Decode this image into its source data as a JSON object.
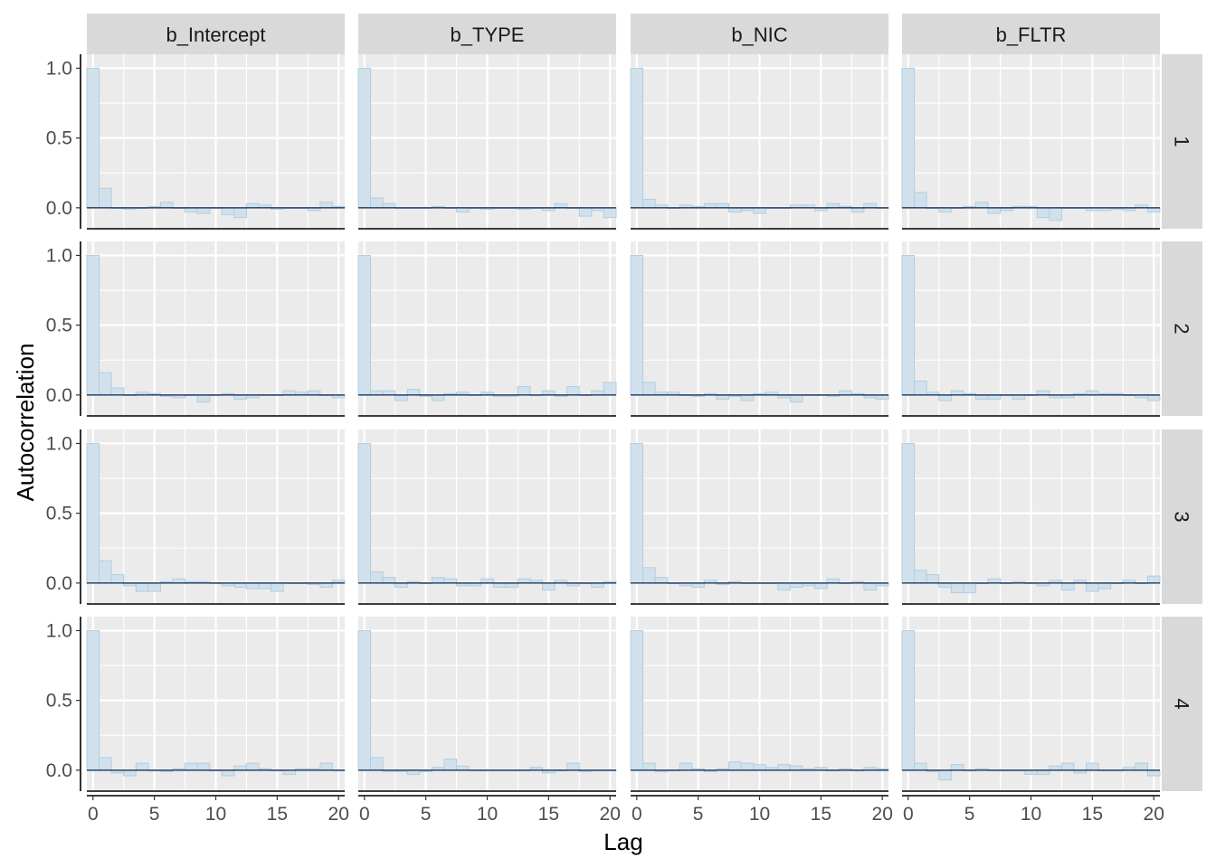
{
  "chart_data": {
    "type": "bar",
    "subtype": "faceted-autocorrelation",
    "xlabel": "Lag",
    "ylabel": "Autocorrelation",
    "xlim": [
      0,
      20
    ],
    "ylim": [
      -0.15,
      1.1
    ],
    "x_ticks": [
      0,
      5,
      10,
      15,
      20
    ],
    "y_ticks": [
      0.0,
      0.5,
      1.0
    ],
    "y_tick_labels": [
      "0.0",
      "0.5",
      "1.0"
    ],
    "grid": true,
    "lags": [
      0,
      1,
      2,
      3,
      4,
      5,
      6,
      7,
      8,
      9,
      10,
      11,
      12,
      13,
      14,
      15,
      16,
      17,
      18,
      19,
      20
    ],
    "columns": [
      "b_Intercept",
      "b_TYPE",
      "b_NIC",
      "b_FLTR"
    ],
    "rows": [
      "1",
      "2",
      "3",
      "4"
    ],
    "colors": {
      "bar_fill": "#d1e1ec",
      "bar_stroke": "#b3cde0",
      "zero_line": "#011f4b",
      "panel_bg": "#ebebeb",
      "grid": "#ffffff",
      "strip_bg": "#d9d9d9",
      "axis_line": "#000000"
    },
    "panels": [
      {
        "row": "1",
        "col": "b_Intercept",
        "values": [
          1.0,
          0.14,
          0.0,
          -0.01,
          0.0,
          0.01,
          0.04,
          0.0,
          -0.03,
          -0.04,
          0.0,
          -0.05,
          -0.07,
          0.03,
          0.02,
          -0.01,
          0.0,
          0.0,
          -0.02,
          0.04,
          0.01
        ]
      },
      {
        "row": "2",
        "col": "b_Intercept",
        "values": [
          1.0,
          0.16,
          0.05,
          0.0,
          0.02,
          0.01,
          -0.01,
          -0.02,
          0.0,
          -0.05,
          0.0,
          0.01,
          -0.03,
          -0.02,
          0.0,
          0.0,
          0.03,
          0.02,
          0.03,
          0.0,
          -0.02
        ]
      },
      {
        "row": "3",
        "col": "b_Intercept",
        "values": [
          1.0,
          0.16,
          0.06,
          -0.02,
          -0.06,
          -0.06,
          0.01,
          0.03,
          0.01,
          0.01,
          0.0,
          -0.02,
          -0.03,
          -0.04,
          -0.04,
          -0.06,
          0.0,
          0.0,
          -0.01,
          -0.03,
          0.02
        ]
      },
      {
        "row": "4",
        "col": "b_Intercept",
        "values": [
          1.0,
          0.09,
          -0.02,
          -0.04,
          0.05,
          0.0,
          -0.01,
          0.01,
          0.05,
          0.05,
          0.0,
          -0.04,
          0.03,
          0.05,
          0.01,
          0.0,
          -0.03,
          0.01,
          0.01,
          0.05,
          0.0
        ]
      },
      {
        "row": "1",
        "col": "b_TYPE",
        "values": [
          1.0,
          0.07,
          0.03,
          0.0,
          0.0,
          0.0,
          0.01,
          0.0,
          -0.03,
          0.0,
          -0.01,
          0.0,
          0.0,
          -0.01,
          0.0,
          -0.02,
          0.03,
          0.0,
          -0.06,
          -0.02,
          -0.07
        ]
      },
      {
        "row": "2",
        "col": "b_TYPE",
        "values": [
          1.0,
          0.03,
          0.03,
          -0.04,
          0.04,
          -0.01,
          -0.04,
          0.01,
          0.02,
          0.0,
          0.02,
          -0.01,
          -0.01,
          0.06,
          0.0,
          0.03,
          -0.01,
          0.06,
          0.0,
          0.03,
          0.09
        ]
      },
      {
        "row": "3",
        "col": "b_TYPE",
        "values": [
          1.0,
          0.08,
          0.04,
          -0.03,
          0.01,
          0.0,
          0.04,
          0.03,
          -0.02,
          -0.02,
          0.03,
          -0.03,
          -0.03,
          0.03,
          0.02,
          -0.05,
          0.02,
          -0.02,
          0.0,
          -0.03,
          0.01
        ]
      },
      {
        "row": "4",
        "col": "b_TYPE",
        "values": [
          1.0,
          0.09,
          -0.01,
          -0.01,
          -0.03,
          -0.01,
          0.02,
          0.08,
          0.03,
          0.0,
          0.0,
          0.0,
          0.0,
          0.0,
          0.02,
          -0.02,
          0.0,
          0.05,
          -0.01,
          0.0,
          0.0
        ]
      },
      {
        "row": "1",
        "col": "b_NIC",
        "values": [
          1.0,
          0.06,
          0.02,
          0.0,
          0.02,
          0.01,
          0.03,
          0.03,
          -0.03,
          -0.02,
          -0.04,
          0.0,
          0.0,
          0.02,
          0.02,
          -0.02,
          0.03,
          0.01,
          -0.03,
          0.03,
          0.0
        ]
      },
      {
        "row": "2",
        "col": "b_NIC",
        "values": [
          1.0,
          0.09,
          0.02,
          0.02,
          0.0,
          -0.01,
          0.01,
          -0.03,
          -0.01,
          -0.04,
          0.01,
          0.02,
          -0.02,
          -0.05,
          0.0,
          0.0,
          -0.01,
          0.03,
          0.01,
          -0.02,
          -0.03
        ]
      },
      {
        "row": "3",
        "col": "b_NIC",
        "values": [
          1.0,
          0.11,
          0.04,
          0.0,
          -0.02,
          -0.03,
          0.02,
          -0.01,
          0.01,
          0.0,
          0.0,
          0.0,
          -0.05,
          -0.03,
          -0.02,
          -0.04,
          0.03,
          0.0,
          0.01,
          -0.05,
          -0.02
        ]
      },
      {
        "row": "4",
        "col": "b_NIC",
        "values": [
          1.0,
          0.05,
          -0.01,
          0.0,
          0.05,
          0.01,
          -0.01,
          0.01,
          0.06,
          0.05,
          0.04,
          0.02,
          0.04,
          0.03,
          0.01,
          0.02,
          0.0,
          0.01,
          0.0,
          0.02,
          0.01
        ]
      },
      {
        "row": "1",
        "col": "b_FLTR",
        "values": [
          1.0,
          0.11,
          0.0,
          -0.03,
          0.0,
          0.01,
          0.04,
          -0.04,
          -0.02,
          0.01,
          0.01,
          -0.07,
          -0.09,
          0.0,
          0.0,
          -0.02,
          -0.02,
          -0.01,
          -0.02,
          0.02,
          -0.03
        ]
      },
      {
        "row": "2",
        "col": "b_FLTR",
        "values": [
          1.0,
          0.1,
          0.02,
          -0.04,
          0.03,
          0.01,
          -0.03,
          -0.03,
          0.0,
          -0.03,
          0.0,
          0.03,
          -0.02,
          -0.02,
          0.01,
          0.03,
          0.01,
          0.01,
          0.0,
          -0.02,
          -0.04
        ]
      },
      {
        "row": "3",
        "col": "b_FLTR",
        "values": [
          1.0,
          0.09,
          0.06,
          -0.03,
          -0.07,
          -0.07,
          0.0,
          0.03,
          0.0,
          0.01,
          0.0,
          -0.02,
          0.02,
          -0.05,
          0.02,
          -0.06,
          -0.04,
          0.0,
          0.02,
          0.0,
          0.05
        ]
      },
      {
        "row": "4",
        "col": "b_FLTR",
        "values": [
          1.0,
          0.05,
          -0.01,
          -0.07,
          0.04,
          0.0,
          0.01,
          0.0,
          0.0,
          0.0,
          -0.03,
          -0.03,
          0.03,
          0.05,
          -0.02,
          0.05,
          0.0,
          0.0,
          0.02,
          0.05,
          -0.04
        ]
      }
    ]
  }
}
